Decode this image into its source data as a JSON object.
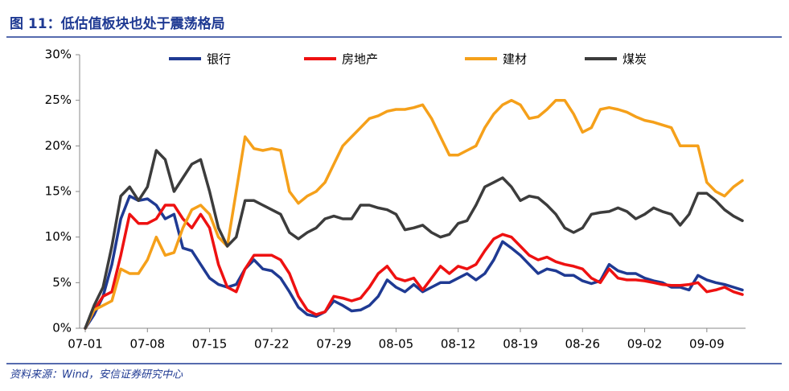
{
  "chart_data": {
    "type": "line",
    "title": "图 11：低估值板块也处于震荡格局",
    "source": "资料来源：Wind，安信证券研究中心",
    "categories": [
      "07-01",
      null,
      null,
      null,
      null,
      null,
      null,
      "07-08",
      null,
      null,
      null,
      null,
      null,
      null,
      "07-15",
      null,
      null,
      null,
      null,
      null,
      null,
      "07-22",
      null,
      null,
      null,
      null,
      null,
      null,
      "07-29",
      null,
      null,
      null,
      null,
      null,
      null,
      "08-05",
      null,
      null,
      null,
      null,
      null,
      null,
      "08-12",
      null,
      null,
      null,
      null,
      null,
      null,
      "08-19",
      null,
      null,
      null,
      null,
      null,
      null,
      "08-26",
      null,
      null,
      null,
      null,
      null,
      null,
      "09-02",
      null,
      null,
      null,
      null,
      null,
      null,
      "09-09",
      null,
      null,
      null,
      null
    ],
    "ylim": [
      0,
      30
    ],
    "yticks": [
      {
        "value": 0,
        "label": "0%"
      },
      {
        "value": 5,
        "label": "5%"
      },
      {
        "value": 10,
        "label": "10%"
      },
      {
        "value": 15,
        "label": "15%"
      },
      {
        "value": 20,
        "label": "20%"
      },
      {
        "value": 25,
        "label": "25%"
      },
      {
        "value": 30,
        "label": "30%"
      }
    ],
    "legend": "top",
    "series": [
      {
        "name": "银行",
        "color": "#1f3a93",
        "values": [
          0,
          1.5,
          3.5,
          7,
          12,
          14.5,
          14,
          14.2,
          13.5,
          12,
          12.5,
          8.8,
          8.5,
          7,
          5.5,
          4.8,
          4.5,
          4.8,
          6.5,
          7.5,
          6.5,
          6.3,
          5.5,
          4,
          2.3,
          1.5,
          1.3,
          1.8,
          3,
          2.5,
          1.9,
          2,
          2.5,
          3.5,
          5.3,
          4.5,
          4,
          4.8,
          4,
          4.5,
          5,
          5,
          5.5,
          6,
          5.3,
          6,
          7.5,
          9.5,
          8.8,
          8,
          7,
          6,
          6.5,
          6.3,
          5.8,
          5.8,
          5.2,
          4.9,
          5.2,
          7,
          6.3,
          6,
          6,
          5.5,
          5.2,
          5,
          4.5,
          4.5,
          4.2,
          5.8,
          5.3,
          5,
          4.8,
          4.5,
          4.2
        ]
      },
      {
        "name": "房地产",
        "color": "#ee1111",
        "values": [
          0,
          2,
          3.5,
          4,
          8,
          12.5,
          11.5,
          11.5,
          12,
          13.5,
          13.5,
          12,
          11,
          12.5,
          11,
          7,
          4.5,
          4,
          6.5,
          8,
          8,
          8,
          7.5,
          6,
          3.5,
          2,
          1.5,
          1.8,
          3.5,
          3.3,
          3,
          3.3,
          4.5,
          6,
          6.8,
          5.5,
          5.2,
          5.5,
          4.2,
          5.5,
          6.8,
          6,
          6.8,
          6.5,
          7,
          8.5,
          9.8,
          10.3,
          10,
          9,
          8,
          7.5,
          7.8,
          7.3,
          7,
          6.8,
          6.5,
          5.5,
          5,
          6.5,
          5.5,
          5.3,
          5.3,
          5.2,
          5,
          4.8,
          4.7,
          4.7,
          4.8,
          5,
          4,
          4.2,
          4.5,
          4,
          3.7
        ]
      },
      {
        "name": "建材",
        "color": "#f5a01a",
        "values": [
          0,
          2,
          2.5,
          3,
          6.5,
          6,
          6,
          7.5,
          10,
          8,
          8.3,
          11,
          13,
          13.5,
          12.5,
          10,
          9,
          15,
          21,
          19.7,
          19.5,
          19.7,
          19.5,
          15,
          13.7,
          14.5,
          15,
          16,
          18,
          20,
          21,
          22,
          23,
          23.3,
          23.8,
          24,
          24,
          24.2,
          24.5,
          23,
          21,
          19,
          19,
          19.5,
          20,
          22,
          23.5,
          24.5,
          25,
          24.5,
          23,
          23.2,
          24,
          25,
          25,
          23.5,
          21.5,
          22,
          24,
          24.2,
          24,
          23.7,
          23.2,
          22.8,
          22.6,
          22.3,
          22,
          20,
          20,
          20,
          16,
          15,
          14.5,
          15.5,
          16.2
        ]
      },
      {
        "name": "煤炭",
        "color": "#3c3c3c",
        "values": [
          0,
          2.5,
          4.5,
          9,
          14.5,
          15.5,
          14,
          15.5,
          19.5,
          18.5,
          15,
          16.5,
          18,
          18.5,
          15,
          11,
          9,
          10,
          14,
          14,
          13.5,
          13,
          12.5,
          10.5,
          9.8,
          10.5,
          11,
          12,
          12.3,
          12,
          12,
          13.5,
          13.5,
          13.2,
          13,
          12.5,
          10.8,
          11,
          11.3,
          10.5,
          10,
          10.3,
          11.5,
          11.8,
          13.5,
          15.5,
          16,
          16.5,
          15.5,
          14,
          14.5,
          14.3,
          13.5,
          12.5,
          11,
          10.5,
          11,
          12.5,
          12.7,
          12.8,
          13.2,
          12.8,
          12,
          12.5,
          13.2,
          12.8,
          12.5,
          11.3,
          12.5,
          14.8,
          14.8,
          14,
          13,
          12.3,
          11.8
        ]
      }
    ]
  }
}
